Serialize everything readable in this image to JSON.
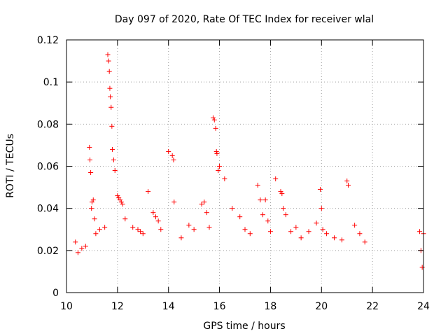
{
  "chart_data": {
    "type": "scatter",
    "title": "Day 097 of 2020, Rate Of TEC Index for receiver wlal",
    "xlabel": "GPS time / hours",
    "ylabel": "ROTI / TECUs",
    "xlim": [
      10,
      24
    ],
    "ylim": [
      0,
      0.12
    ],
    "xticks": [
      10,
      12,
      14,
      16,
      18,
      20,
      22,
      24
    ],
    "yticks": [
      0,
      0.02,
      0.04,
      0.06,
      0.08,
      0.1,
      0.12
    ],
    "xtick_labels": [
      "10",
      "12",
      "14",
      "16",
      "18",
      "20",
      "22",
      "24"
    ],
    "ytick_labels": [
      "0",
      "0.02",
      "0.04",
      "0.06",
      "0.08",
      "0.1",
      "0.12"
    ],
    "grid": true,
    "marker": "+",
    "color": "#ff0000",
    "series": [
      {
        "name": "ROTI",
        "x": [
          10.35,
          10.45,
          10.6,
          10.75,
          10.9,
          10.92,
          10.95,
          10.98,
          11.0,
          11.05,
          11.1,
          11.15,
          11.3,
          11.5,
          11.62,
          11.65,
          11.68,
          11.7,
          11.72,
          11.75,
          11.78,
          11.8,
          11.85,
          11.9,
          12.0,
          12.05,
          12.1,
          12.15,
          12.2,
          12.3,
          12.6,
          12.8,
          12.9,
          13.0,
          13.2,
          13.4,
          13.5,
          13.6,
          13.7,
          14.0,
          14.15,
          14.2,
          14.22,
          14.5,
          14.8,
          15.0,
          15.3,
          15.4,
          15.5,
          15.6,
          15.75,
          15.8,
          15.85,
          15.88,
          15.9,
          15.95,
          16.0,
          16.2,
          16.5,
          16.8,
          17.0,
          17.2,
          17.5,
          17.6,
          17.7,
          17.8,
          17.9,
          18.0,
          18.2,
          18.4,
          18.45,
          18.5,
          18.6,
          18.8,
          19.0,
          19.2,
          19.5,
          19.8,
          19.95,
          20.0,
          20.05,
          20.2,
          20.5,
          20.8,
          21.0,
          21.05,
          21.3,
          21.5,
          21.7,
          23.85,
          23.9,
          23.95,
          24.0
        ],
        "y": [
          0.024,
          0.019,
          0.021,
          0.022,
          0.069,
          0.063,
          0.057,
          0.04,
          0.043,
          0.044,
          0.035,
          0.028,
          0.03,
          0.031,
          0.113,
          0.11,
          0.105,
          0.097,
          0.093,
          0.088,
          0.079,
          0.068,
          0.063,
          0.058,
          0.046,
          0.045,
          0.044,
          0.043,
          0.042,
          0.035,
          0.031,
          0.03,
          0.029,
          0.028,
          0.048,
          0.038,
          0.036,
          0.034,
          0.03,
          0.067,
          0.065,
          0.063,
          0.043,
          0.026,
          0.032,
          0.03,
          0.042,
          0.043,
          0.038,
          0.031,
          0.083,
          0.082,
          0.078,
          0.067,
          0.066,
          0.058,
          0.06,
          0.054,
          0.04,
          0.036,
          0.03,
          0.028,
          0.051,
          0.044,
          0.037,
          0.044,
          0.034,
          0.029,
          0.054,
          0.048,
          0.047,
          0.04,
          0.037,
          0.029,
          0.031,
          0.026,
          0.029,
          0.033,
          0.049,
          0.04,
          0.03,
          0.028,
          0.026,
          0.025,
          0.053,
          0.051,
          0.032,
          0.028,
          0.024,
          0.029,
          0.02,
          0.012,
          0.028
        ]
      }
    ]
  }
}
